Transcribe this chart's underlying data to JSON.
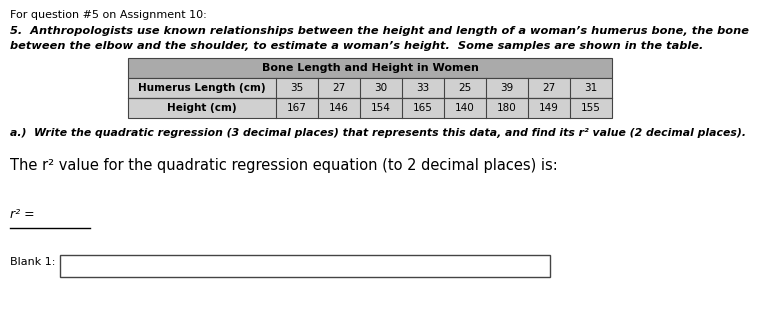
{
  "header_line": "For question #5 on Assignment 10:",
  "problem_text_line1": "5.  Anthropologists use known relationships between the height and length of a woman’s humerus bone, the bone",
  "problem_text_line2": "between the elbow and the shoulder, to estimate a woman’s height.  Some samples are shown in the table.",
  "table_title": "Bone Length and Height in Women",
  "row1_label": "Humerus Length (cm)",
  "row2_label": "Height (cm)",
  "humerus_values": [
    35,
    27,
    30,
    33,
    25,
    39,
    27,
    31
  ],
  "height_values": [
    167,
    146,
    154,
    165,
    140,
    180,
    149,
    155
  ],
  "part_a_text": "a.)  Write the quadratic regression (3 decimal places) that represents this data, and find its r² value (2 decimal places).",
  "r2_intro": "The r² value for the quadratic regression equation (to 2 decimal places) is:",
  "r2_label": "r² =",
  "blank_label": "Blank 1:",
  "bg_color": "#ffffff",
  "table_header_bg": "#aaaaaa",
  "table_row_bg": "#d0d0d0",
  "table_border_color": "#444444",
  "text_color": "#000000"
}
